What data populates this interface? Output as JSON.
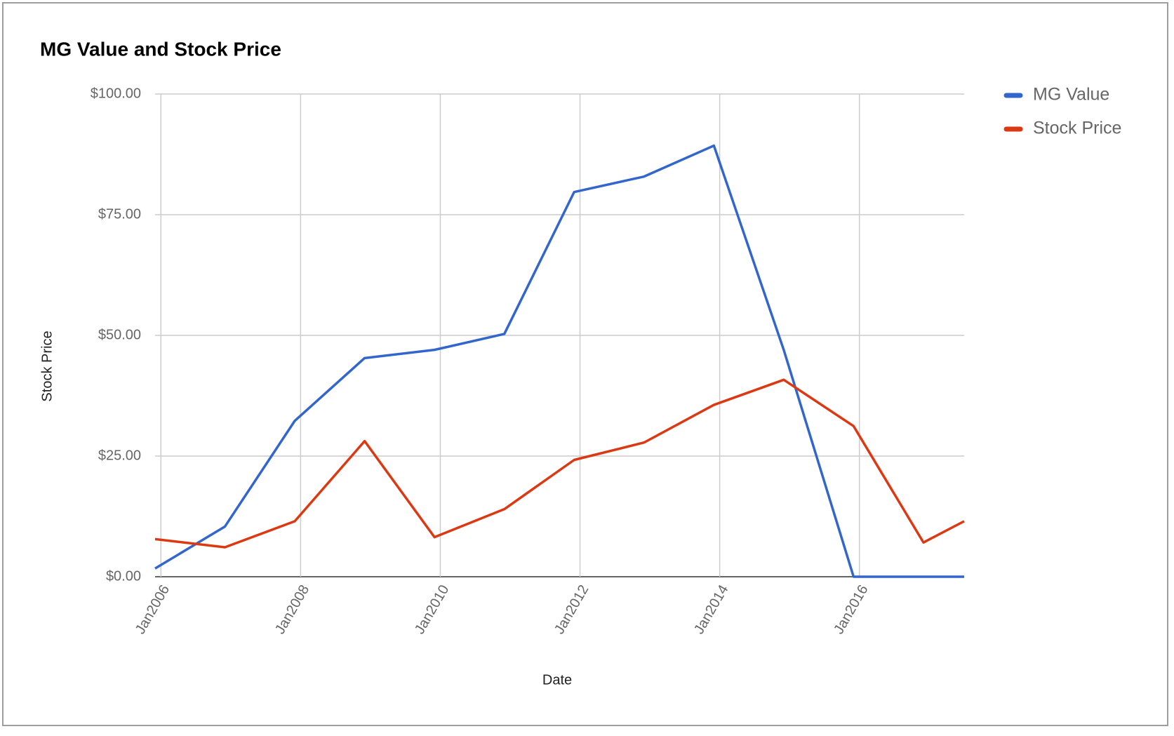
{
  "chart_data": {
    "type": "line",
    "title": "MG Value and Stock Price",
    "x_label": "Date",
    "y_label": "Stock Price",
    "x": [
      "2005-12",
      "2006-12",
      "2007-12",
      "2008-12",
      "2009-12",
      "2010-12",
      "2011-12",
      "2012-12",
      "2013-12",
      "2014-12",
      "2015-12",
      "2016-12",
      "2017-07"
    ],
    "series": [
      {
        "name": "MG Value",
        "color": "#3366cc",
        "values": [
          1.7,
          10.4,
          32.3,
          45.3,
          47.0,
          50.3,
          79.7,
          82.9,
          89.3,
          47.0,
          0,
          0,
          0
        ]
      },
      {
        "name": "Stock Price",
        "color": "#dc3912",
        "values": [
          7.8,
          6.1,
          11.5,
          28.1,
          8.2,
          14.0,
          24.2,
          27.8,
          35.6,
          40.8,
          31.2,
          7.1,
          11.5
        ]
      }
    ],
    "xlim": [
      "2005-12",
      "2017-07"
    ],
    "xticks": [
      {
        "value": "2006-01",
        "label": "Jan2006"
      },
      {
        "value": "2008-01",
        "label": "Jan2008"
      },
      {
        "value": "2010-01",
        "label": "Jan2010"
      },
      {
        "value": "2012-01",
        "label": "Jan2012"
      },
      {
        "value": "2014-01",
        "label": "Jan2014"
      },
      {
        "value": "2016-01",
        "label": "Jan2016"
      }
    ],
    "ylim": [
      0,
      100
    ],
    "yticks": [
      {
        "value": 0,
        "label": "$0.00"
      },
      {
        "value": 25,
        "label": "$25.00"
      },
      {
        "value": 50,
        "label": "$50.00"
      },
      {
        "value": 75,
        "label": "$75.00"
      },
      {
        "value": 100,
        "label": "$100.00"
      }
    ],
    "grid": true,
    "legend": "right"
  }
}
